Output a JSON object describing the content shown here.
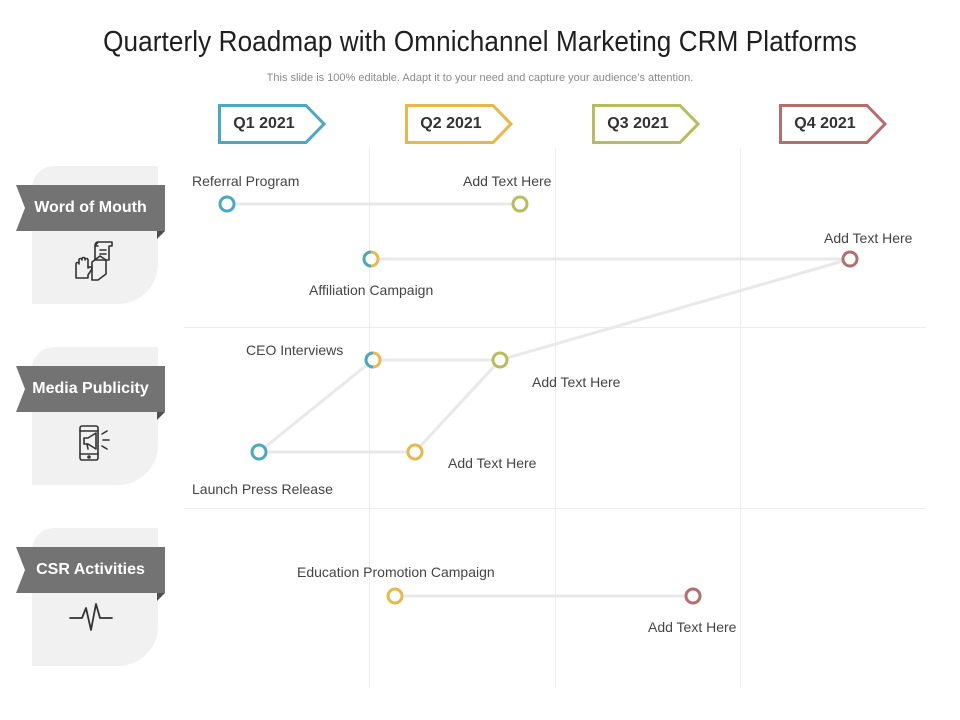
{
  "title": "Quarterly Roadmap with Omnichannel Marketing CRM Platforms",
  "subtitle": "This slide is 100% editable. Adapt it to your need and capture your audience’s attention.",
  "quarters": [
    {
      "label": "Q1 2021",
      "color": "#4aa8c4"
    },
    {
      "label": "Q2 2021",
      "color": "#e8b84a"
    },
    {
      "label": "Q3 2021",
      "color": "#b7bd5c"
    },
    {
      "label": "Q4 2021",
      "color": "#b56d6d"
    }
  ],
  "categories": [
    {
      "label": "Word of Mouth",
      "icon": "hand-with-scroll-icon"
    },
    {
      "label": "Media Publicity",
      "icon": "phone-megaphone-icon"
    },
    {
      "label": "CSR Activities",
      "icon": "heartbeat-pulse-icon"
    }
  ],
  "events": {
    "referral_program": "Referral Program",
    "add_text_1": "Add Text Here",
    "add_text_2": "Add Text Here",
    "affiliation_campaign": "Affiliation Campaign",
    "ceo_interviews": "CEO Interviews",
    "add_text_3": "Add Text Here",
    "add_text_4": "Add Text Here",
    "launch_press_release": "Launch Press Release",
    "education_promotion_campaign": "Education Promotion Campaign",
    "add_text_5": "Add Text Here"
  },
  "colors": {
    "line": "#e9e9e9",
    "ribbon": "#737373",
    "panel": "#f1f1f1"
  }
}
